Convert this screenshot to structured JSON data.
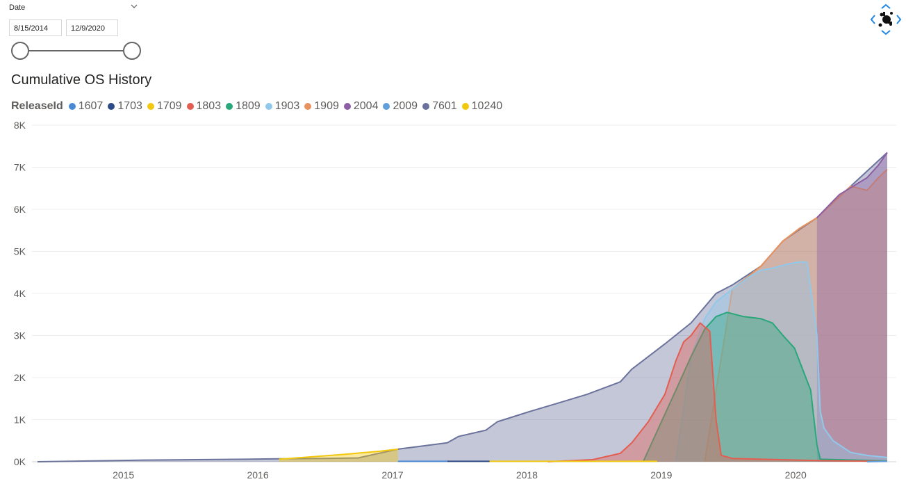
{
  "slicer": {
    "label": "Date",
    "start": "8/15/2014",
    "end": "12/9/2020"
  },
  "chart_data": {
    "type": "area",
    "title": "Cumulative OS History",
    "legend_title": "ReleaseId",
    "legend_position": "top-left",
    "grid": true,
    "ylim": [
      0,
      8000
    ],
    "y_ticks": [
      "0K",
      "1K",
      "2K",
      "3K",
      "4K",
      "5K",
      "6K",
      "7K",
      "8K"
    ],
    "x_ticks": [
      "2015",
      "2016",
      "2017",
      "2018",
      "2019",
      "2020"
    ],
    "xlim": [
      "2014-08-15",
      "2020-12-09"
    ],
    "series": [
      {
        "name": "1607",
        "color": "#4a8ad5",
        "x": [
          "2017-04-20",
          "2017-09-01"
        ],
        "y": [
          10,
          10
        ]
      },
      {
        "name": "1703",
        "color": "#2e4a86",
        "x": [
          "2017-09-01",
          "2017-12-25"
        ],
        "y": [
          10,
          10
        ]
      },
      {
        "name": "1709",
        "color": "#f2c811",
        "x": [
          "2017-12-25",
          "2019-03-25"
        ],
        "y": [
          10,
          10
        ]
      },
      {
        "name": "1803",
        "color": "#e45d51",
        "x": [
          "2018-06-01",
          "2018-10-01",
          "2018-12-15",
          "2019-01-15",
          "2019-03-01",
          "2019-04-15",
          "2019-05-15",
          "2019-06-05",
          "2019-06-25",
          "2019-07-20",
          "2019-08-15",
          "2019-09-01",
          "2019-09-15",
          "2019-10-15",
          "2020-01-01",
          "2020-06-01",
          "2020-12-09"
        ],
        "y": [
          0,
          50,
          200,
          450,
          950,
          1600,
          2400,
          2850,
          3000,
          3300,
          3100,
          1000,
          150,
          80,
          60,
          30,
          10
        ]
      },
      {
        "name": "1809",
        "color": "#28a77a",
        "x": [
          "2019-02-15",
          "2019-05-15",
          "2019-06-25",
          "2019-08-01",
          "2019-09-01",
          "2019-10-01",
          "2019-11-15",
          "2020-01-01",
          "2020-02-01",
          "2020-03-01",
          "2020-04-01",
          "2020-05-15",
          "2020-06-01",
          "2020-06-10",
          "2020-12-09"
        ],
        "y": [
          0,
          1700,
          2500,
          3150,
          3450,
          3550,
          3450,
          3400,
          3300,
          3000,
          2700,
          1700,
          400,
          60,
          20
        ]
      },
      {
        "name": "1903",
        "color": "#8fc9ec",
        "x": [
          "2019-05-15",
          "2019-06-25",
          "2019-08-01",
          "2019-09-01",
          "2019-10-15",
          "2019-12-01",
          "2020-01-01",
          "2020-02-01",
          "2020-03-15",
          "2020-04-15",
          "2020-05-05",
          "2020-06-01",
          "2020-06-10",
          "2020-06-20",
          "2020-07-15",
          "2020-09-01",
          "2020-10-15",
          "2020-12-09"
        ],
        "y": [
          0,
          2500,
          3400,
          3800,
          4100,
          4400,
          4550,
          4600,
          4700,
          4750,
          4740,
          3000,
          1200,
          800,
          500,
          220,
          150,
          100
        ]
      },
      {
        "name": "1909",
        "color": "#e8925e",
        "x": [
          "2019-08-01",
          "2019-10-15",
          "2020-01-01",
          "2020-03-01",
          "2020-04-15",
          "2020-06-01",
          "2020-07-01",
          "2020-08-01",
          "2020-09-01",
          "2020-10-15",
          "2020-11-15",
          "2020-12-09"
        ],
        "y": [
          0,
          4100,
          4650,
          5250,
          5550,
          5800,
          6050,
          6300,
          6550,
          6450,
          6750,
          6950
        ]
      },
      {
        "name": "2004",
        "color": "#8d5ea3",
        "x": [
          "2020-06-01",
          "2020-08-01",
          "2020-10-15",
          "2020-11-15",
          "2020-12-09"
        ],
        "y": [
          5800,
          6350,
          6750,
          7050,
          7350
        ]
      },
      {
        "name": "2009",
        "color": "#5f9fdc",
        "x": [
          "2020-10-15",
          "2020-12-09"
        ],
        "y": [
          0,
          10
        ]
      },
      {
        "name": "7601",
        "color": "#6b739c",
        "x": [
          "2014-08-15",
          "2015-06-01",
          "2016-03-01",
          "2016-06-01",
          "2016-10-01",
          "2017-01-01",
          "2017-04-20",
          "2017-07-01",
          "2017-09-01",
          "2017-10-01",
          "2017-12-15",
          "2018-01-15",
          "2018-04-15",
          "2018-07-01",
          "2018-09-15",
          "2018-12-15",
          "2019-01-15",
          "2019-04-15",
          "2019-06-25",
          "2019-09-01",
          "2019-10-15",
          "2020-01-01",
          "2020-03-01",
          "2020-06-01",
          "2020-09-01",
          "2020-12-09"
        ],
        "y": [
          0,
          40,
          60,
          70,
          80,
          90,
          300,
          380,
          450,
          600,
          750,
          950,
          1200,
          1400,
          1600,
          1900,
          2200,
          2800,
          3300,
          4000,
          4200,
          4650,
          5250,
          5800,
          6550,
          7350
        ]
      },
      {
        "name": "10240",
        "color": "#f2c80f",
        "x": [
          "2016-06-01",
          "2016-09-01",
          "2016-12-01",
          "2017-03-01",
          "2017-04-20"
        ],
        "y": [
          60,
          120,
          180,
          250,
          300
        ]
      }
    ]
  }
}
